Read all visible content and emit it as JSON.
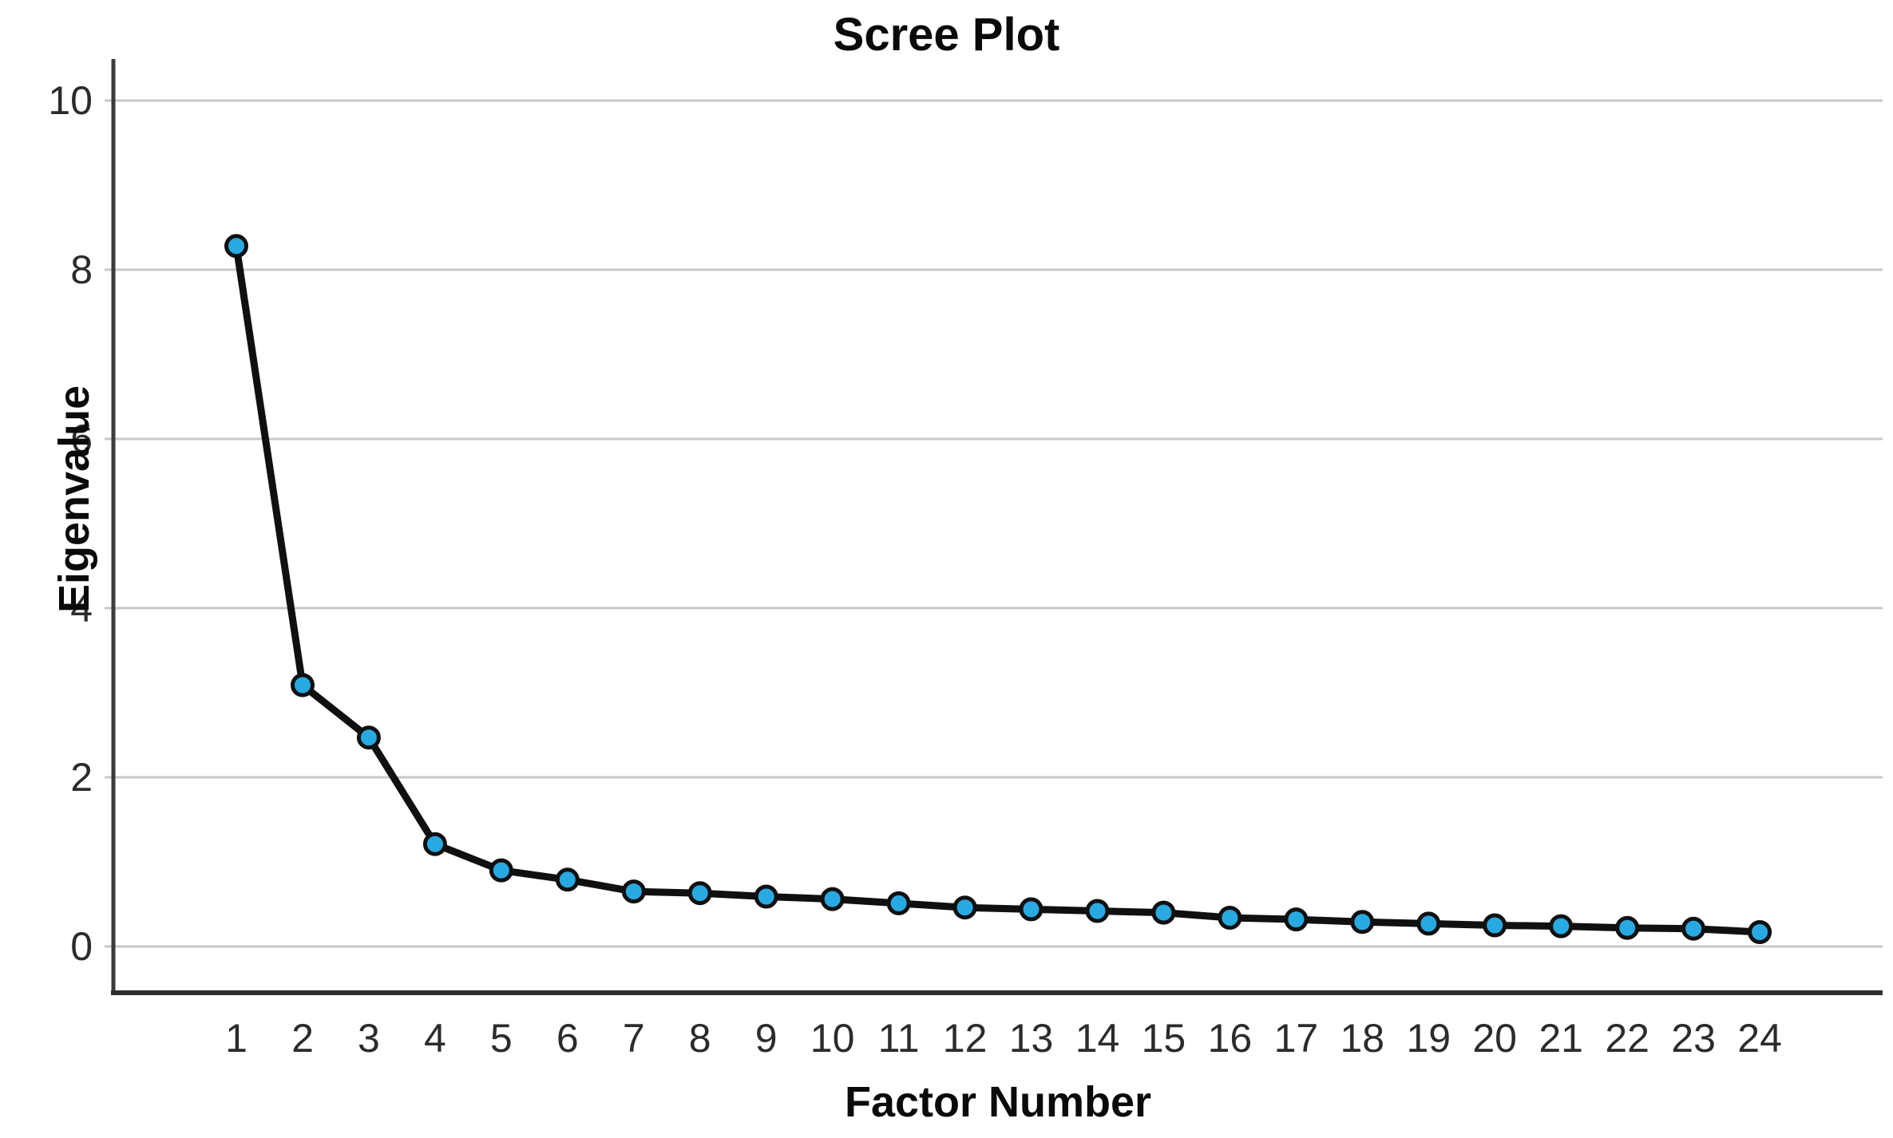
{
  "chart_data": {
    "type": "line",
    "title": "Scree Plot",
    "xlabel": "Factor Number",
    "ylabel": "Eigenvalue",
    "categories": [
      "1",
      "2",
      "3",
      "4",
      "5",
      "6",
      "7",
      "8",
      "9",
      "10",
      "11",
      "12",
      "13",
      "14",
      "15",
      "16",
      "17",
      "18",
      "19",
      "20",
      "21",
      "22",
      "23",
      "24"
    ],
    "series": [
      {
        "name": "Eigenvalues",
        "x": [
          1,
          2,
          3,
          4,
          5,
          6,
          7,
          8,
          9,
          10,
          11,
          12,
          13,
          14,
          15,
          16,
          17,
          18,
          19,
          20,
          21,
          22,
          23,
          24
        ],
        "values": [
          8.28,
          3.09,
          2.47,
          1.21,
          0.9,
          0.79,
          0.65,
          0.63,
          0.59,
          0.56,
          0.51,
          0.46,
          0.44,
          0.42,
          0.4,
          0.34,
          0.32,
          0.29,
          0.27,
          0.25,
          0.24,
          0.22,
          0.21,
          0.17
        ]
      }
    ],
    "yticks": [
      0,
      2,
      4,
      6,
      8,
      10
    ],
    "ytick_labels": [
      "0",
      "2",
      "4",
      "6",
      "8",
      "10"
    ],
    "ylim": [
      0,
      11.0
    ],
    "grid": "horizontal-only",
    "legend": "none",
    "marker": "circle",
    "colors": {
      "marker_fill": "#29a9e1",
      "marker_stroke": "#101010",
      "line": "#101010",
      "grid": "#c8c8c8",
      "y_axis": "#3c3c3c",
      "x_axis": "#2e2e2e",
      "tick_text": "#2b2b2b",
      "title_text": "#0a0a0a",
      "background": "#ffffff"
    }
  }
}
